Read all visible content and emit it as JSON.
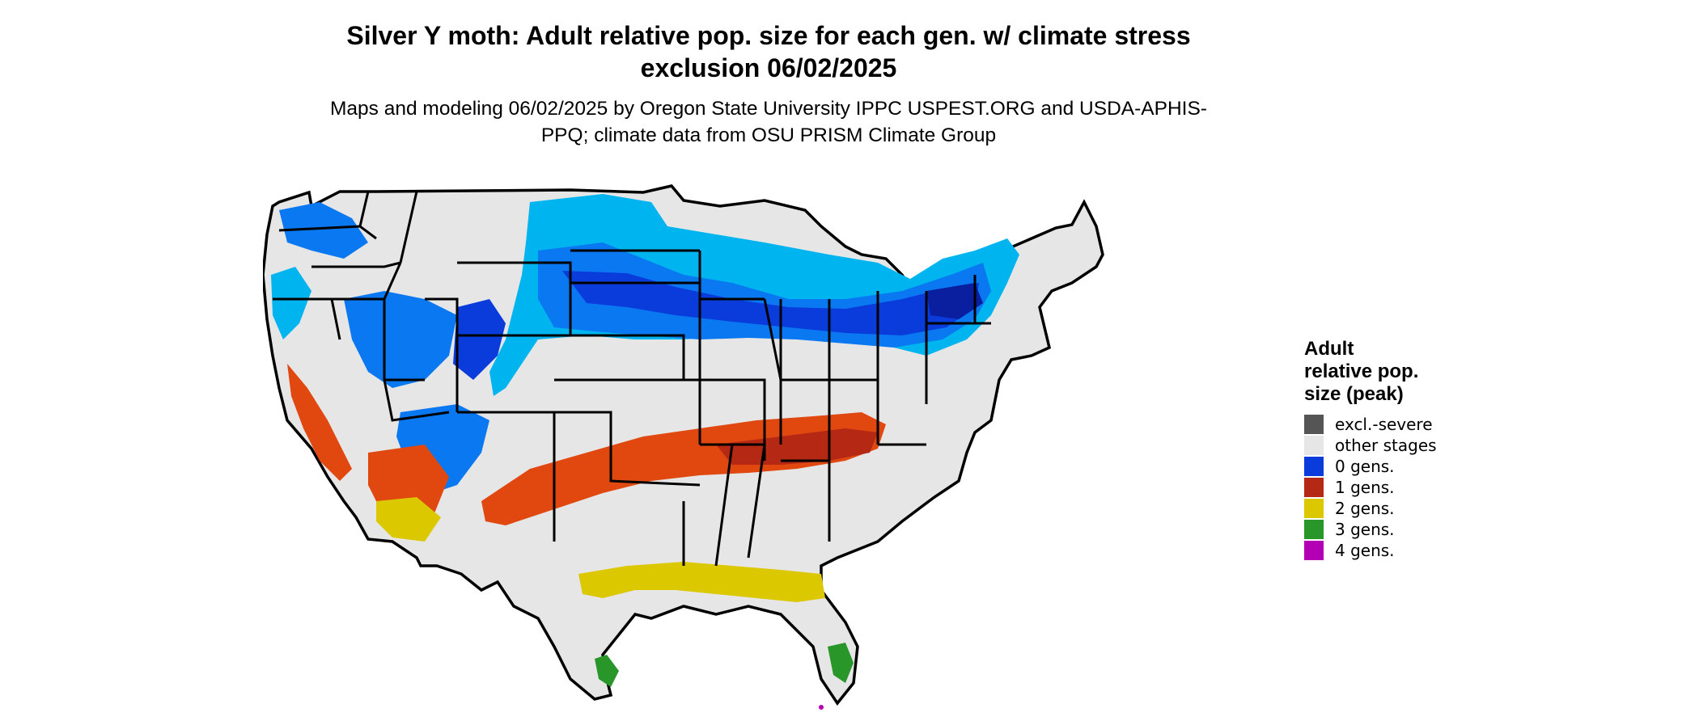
{
  "title": "Silver Y moth: Adult relative pop. size for each gen. w/ climate stress exclusion 06/02/2025",
  "subtitle": "Maps and modeling 06/02/2025 by Oregon State University IPPC USPEST.ORG and USDA-APHIS-PPQ; climate data from OSU PRISM Climate Group",
  "legend": {
    "title": "Adult relative pop. size (peak)",
    "items": [
      {
        "label": "excl.-severe",
        "color": "#555555"
      },
      {
        "label": "other stages",
        "color": "#e6e6e6"
      },
      {
        "label": "0 gens.",
        "color": "#0a3cdc"
      },
      {
        "label": "1 gens.",
        "color": "#b42814"
      },
      {
        "label": "2 gens.",
        "color": "#dcc800"
      },
      {
        "label": "3 gens.",
        "color": "#289628"
      },
      {
        "label": "4 gens.",
        "color": "#b400b4"
      }
    ]
  },
  "map_colors": {
    "background_land": "#e6e6e6",
    "light_blue": "#00b4f0",
    "mid_blue": "#0a78f0",
    "dark_blue": "#0a3cdc",
    "deep_blue": "#0a1ea0",
    "orange": "#e04810",
    "red": "#b42814",
    "yellow": "#dcc800",
    "green": "#289628",
    "magenta": "#b400b4",
    "border": "#000000"
  }
}
